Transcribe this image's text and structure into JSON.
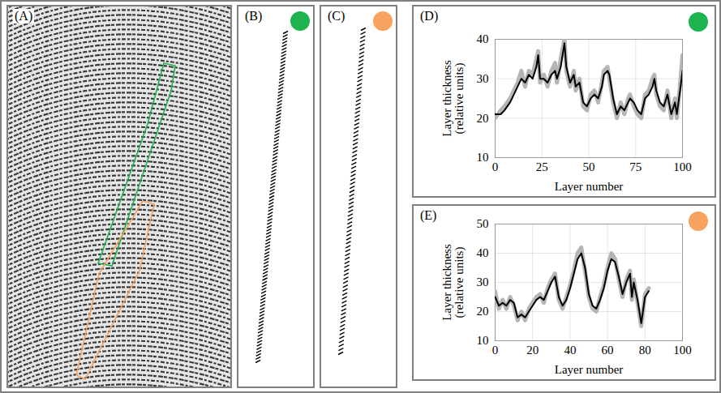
{
  "panels": [
    {
      "title": "(A)"
    },
    {
      "title": "(B)"
    },
    {
      "title": "(C)"
    }
  ],
  "chart_data": [
    {
      "type": "line",
      "title": "(D)",
      "x_label": "Layer number",
      "y_label": "Layer thickness (relative units)",
      "x": [
        0,
        3,
        5,
        8,
        10,
        12,
        14,
        16,
        18,
        20,
        22,
        23,
        24,
        26,
        28,
        30,
        32,
        33,
        35,
        37,
        38,
        40,
        42,
        43,
        45,
        47,
        49,
        51,
        53,
        55,
        57,
        58,
        60,
        61,
        63,
        65,
        67,
        69,
        71,
        72,
        74,
        76,
        78,
        80,
        82,
        84,
        85,
        86,
        88,
        90,
        92,
        94,
        96,
        97,
        99,
        100
      ],
      "series": [
        {
          "color": "#b5b5b5",
          "values": [
            20,
            22,
            23,
            25,
            27,
            29,
            32,
            28,
            32,
            31,
            35,
            37,
            29,
            31,
            28,
            32,
            34,
            29,
            35,
            40,
            32,
            28,
            32,
            27,
            30,
            23,
            22,
            26,
            27,
            24,
            29,
            32,
            33,
            30,
            24,
            20,
            24,
            21,
            25,
            26,
            23,
            21,
            20,
            26,
            27,
            30,
            31,
            26,
            23,
            22,
            27,
            20,
            25,
            20,
            30,
            36
          ]
        },
        {
          "color": "#000000",
          "values": [
            21,
            21,
            22,
            24,
            26,
            28,
            30,
            29,
            31,
            30,
            33,
            36,
            30,
            30,
            29,
            31,
            32,
            30,
            33,
            39,
            33,
            29,
            31,
            28,
            29,
            24,
            23,
            25,
            26,
            25,
            28,
            31,
            32,
            31,
            25,
            21,
            23,
            22,
            24,
            25,
            24,
            22,
            21,
            25,
            26,
            28,
            30,
            27,
            24,
            23,
            26,
            21,
            24,
            21,
            28,
            32
          ]
        }
      ],
      "xlim": [
        0,
        100
      ],
      "xticks": [
        0,
        25,
        50,
        75,
        100
      ],
      "ylim": [
        10,
        40
      ],
      "yticks": [
        10,
        20,
        30,
        40
      ],
      "grid": true
    },
    {
      "type": "line",
      "title": "(E)",
      "x_label": "Layer number",
      "y_label": "Layer thickness (relative units)",
      "x": [
        0,
        2,
        4,
        6,
        8,
        10,
        12,
        14,
        16,
        18,
        20,
        22,
        24,
        26,
        28,
        30,
        32,
        34,
        36,
        38,
        40,
        42,
        44,
        46,
        48,
        50,
        52,
        54,
        56,
        58,
        60,
        62,
        64,
        66,
        68,
        70,
        72,
        73,
        74,
        76,
        78,
        80,
        82
      ],
      "series": [
        {
          "color": "#b5b5b5",
          "values": [
            27,
            21,
            24,
            21,
            25,
            22,
            17,
            20,
            17,
            21,
            23,
            25,
            26,
            23,
            28,
            31,
            33,
            24,
            21,
            25,
            29,
            34,
            40,
            42,
            34,
            25,
            21,
            20,
            25,
            29,
            35,
            40,
            38,
            31,
            25,
            31,
            34,
            24,
            31,
            23,
            15,
            26,
            28
          ]
        },
        {
          "color": "#000000",
          "values": [
            25,
            22,
            23,
            22,
            24,
            23,
            18,
            19,
            18,
            20,
            22,
            24,
            25,
            24,
            27,
            30,
            32,
            25,
            22,
            24,
            28,
            33,
            38,
            40,
            35,
            26,
            22,
            21,
            24,
            28,
            34,
            38,
            37,
            32,
            26,
            30,
            33,
            25,
            30,
            24,
            16,
            25,
            27
          ]
        }
      ],
      "xlim": [
        0,
        100
      ],
      "xticks": [
        0,
        20,
        40,
        60,
        80,
        100
      ],
      "ylim": [
        10,
        50
      ],
      "yticks": [
        10,
        20,
        30,
        40,
        50
      ],
      "grid": true
    }
  ]
}
